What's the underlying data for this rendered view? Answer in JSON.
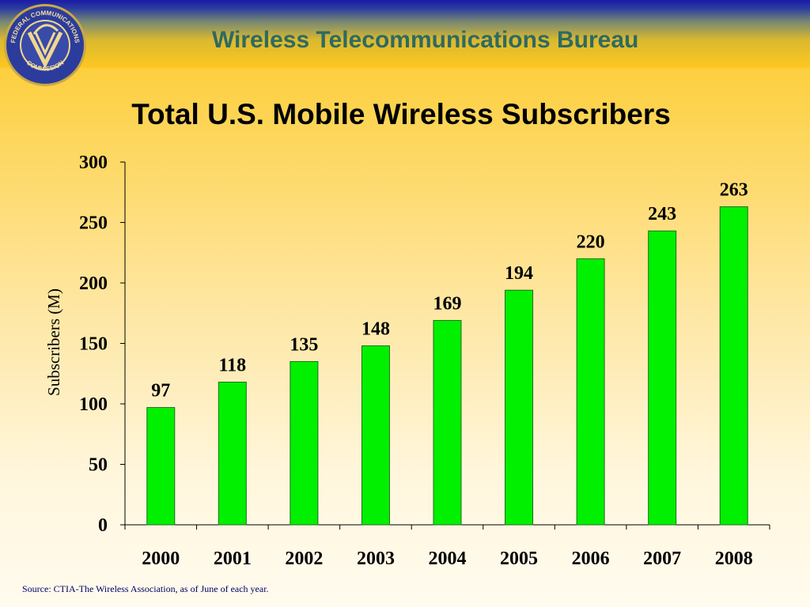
{
  "header": {
    "bureau": "Wireless Telecommunications Bureau",
    "seal_icon": "fcc-seal-icon",
    "seal_text_top": "FEDERAL COMMUNICATIONS",
    "seal_text_bottom": "COMMISSION"
  },
  "colors": {
    "bar_fill": "#00f000",
    "bar_stroke": "#1f6b1f",
    "bureau_text": "#2d6a62",
    "source_text": "#000066"
  },
  "chart_data": {
    "type": "bar",
    "title": "Total U.S. Mobile Wireless Subscribers",
    "ylabel": "Subscribers (M)",
    "xlabel": "",
    "categories": [
      "2000",
      "2001",
      "2002",
      "2003",
      "2004",
      "2005",
      "2006",
      "2007",
      "2008"
    ],
    "values": [
      97,
      118,
      135,
      148,
      169,
      194,
      220,
      243,
      263
    ],
    "ylim": [
      0,
      300
    ],
    "yticks": [
      0,
      50,
      100,
      150,
      200,
      250,
      300
    ],
    "grid": false,
    "legend": "none"
  },
  "footer": {
    "source": "Source: CTIA-The Wireless Association, as of June of each year."
  }
}
